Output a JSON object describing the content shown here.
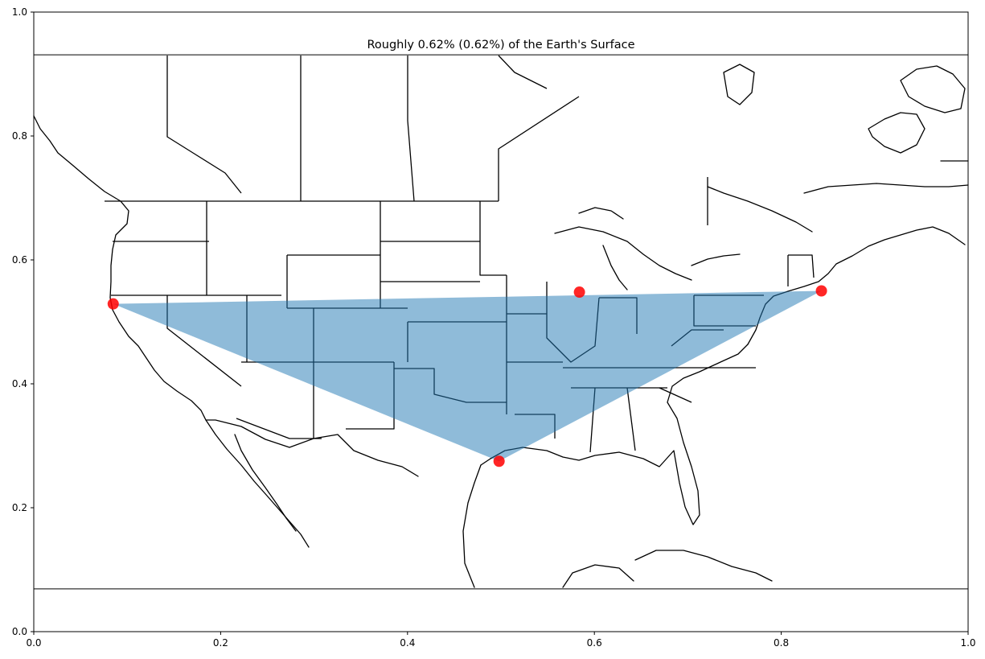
{
  "title": "Roughly 0.62% (0.62%) of the Earth's Surface",
  "colors": {
    "fill": "#1f77b4",
    "fill_alpha": 0.5,
    "marker": "#ff0000",
    "marker_alpha": 0.85
  },
  "chart_data": {
    "type": "scatter",
    "title": "Roughly 0.62% (0.62%) of the Earth's Surface",
    "xlim": [
      0.0,
      1.0
    ],
    "ylim": [
      0.0,
      1.0
    ],
    "xticks": [
      "0.0",
      "0.2",
      "0.4",
      "0.6",
      "0.8",
      "1.0"
    ],
    "yticks": [
      "0.0",
      "0.2",
      "0.4",
      "0.6",
      "0.8",
      "1.0"
    ],
    "map_extent_y": [
      0.069,
      0.931
    ],
    "markers": [
      {
        "x": 0.085,
        "y": 0.529
      },
      {
        "x": 0.584,
        "y": 0.548
      },
      {
        "x": 0.843,
        "y": 0.55
      },
      {
        "x": 0.498,
        "y": 0.275
      }
    ],
    "polygon": [
      {
        "x": 0.085,
        "y": 0.529
      },
      {
        "x": 0.843,
        "y": 0.55
      },
      {
        "x": 0.498,
        "y": 0.275
      }
    ],
    "grid": false
  }
}
